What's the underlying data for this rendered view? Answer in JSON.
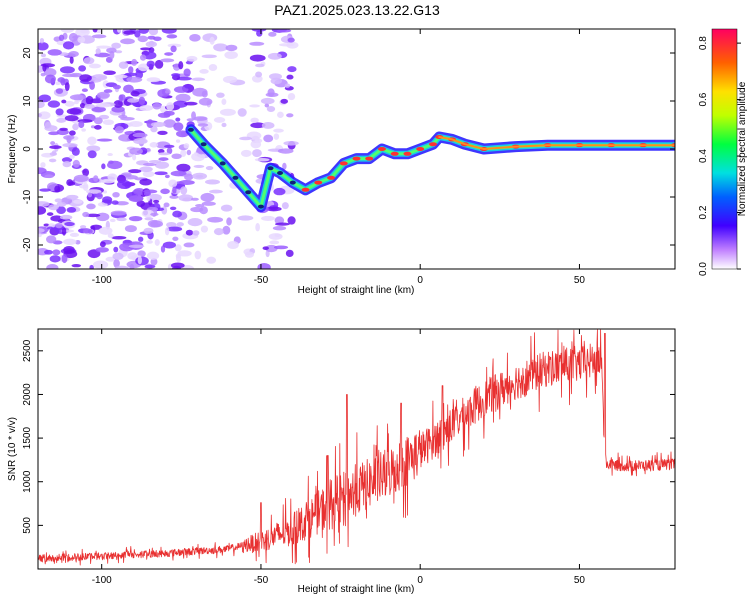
{
  "title": "PAZ1.2025.023.13.22.G13",
  "colors": {
    "snr_line": "#e83030",
    "noise": "#7a3cff",
    "signal_low": "#2040ff",
    "signal_mid": "#20e0c0",
    "signal_high": "#ff2020"
  },
  "chart_data": [
    {
      "type": "heatmap",
      "title": "",
      "xlabel": "Height of straight line (km)",
      "ylabel": "Frequency (Hz)",
      "xlim": [
        -120,
        80
      ],
      "ylim": [
        -25,
        25
      ],
      "x_ticks": [
        "-100",
        "-50",
        "0",
        "50"
      ],
      "y_ticks": [
        "20",
        "10",
        "0",
        "-10",
        "-20"
      ],
      "colorbar": {
        "label": "Normalized spectral amplitude",
        "range": [
          0,
          0.85
        ],
        "ticks": [
          "0.0",
          "0.2",
          "0.4",
          "0.6",
          "0.8"
        ]
      },
      "ridge": [
        {
          "x": -72,
          "y": 4
        },
        {
          "x": -68,
          "y": 1
        },
        {
          "x": -62,
          "y": -3
        },
        {
          "x": -58,
          "y": -6
        },
        {
          "x": -54,
          "y": -9
        },
        {
          "x": -50,
          "y": -12
        },
        {
          "x": -47,
          "y": -4
        },
        {
          "x": -44,
          "y": -5
        },
        {
          "x": -40,
          "y": -7
        },
        {
          "x": -36,
          "y": -8.5
        },
        {
          "x": -32,
          "y": -7
        },
        {
          "x": -28,
          "y": -6
        },
        {
          "x": -24,
          "y": -3
        },
        {
          "x": -20,
          "y": -2
        },
        {
          "x": -16,
          "y": -2
        },
        {
          "x": -12,
          "y": 0
        },
        {
          "x": -8,
          "y": -1
        },
        {
          "x": -4,
          "y": -1
        },
        {
          "x": 0,
          "y": 0
        },
        {
          "x": 4,
          "y": 1
        },
        {
          "x": 6,
          "y": 2.5
        },
        {
          "x": 10,
          "y": 2
        },
        {
          "x": 14,
          "y": 1
        },
        {
          "x": 20,
          "y": 0
        },
        {
          "x": 30,
          "y": 0.5
        },
        {
          "x": 40,
          "y": 0.8
        },
        {
          "x": 50,
          "y": 0.8
        },
        {
          "x": 60,
          "y": 0.8
        },
        {
          "x": 70,
          "y": 0.8
        },
        {
          "x": 80,
          "y": 0.8
        }
      ]
    },
    {
      "type": "line",
      "title": "",
      "xlabel": "Height of straight line (km)",
      "ylabel": "SNR (10 * v/v)",
      "xlim": [
        -120,
        80
      ],
      "ylim": [
        0,
        2750
      ],
      "x_ticks": [
        "-100",
        "-50",
        "0",
        "50"
      ],
      "y_ticks": [
        "500",
        "1000",
        "1500",
        "2000",
        "2500"
      ],
      "trend": [
        {
          "x": -120,
          "y": 120
        },
        {
          "x": -100,
          "y": 150
        },
        {
          "x": -80,
          "y": 180
        },
        {
          "x": -60,
          "y": 230
        },
        {
          "x": -50,
          "y": 320
        },
        {
          "x": -40,
          "y": 450
        },
        {
          "x": -30,
          "y": 700
        },
        {
          "x": -20,
          "y": 900
        },
        {
          "x": -10,
          "y": 1100
        },
        {
          "x": 0,
          "y": 1350
        },
        {
          "x": 10,
          "y": 1650
        },
        {
          "x": 20,
          "y": 1950
        },
        {
          "x": 30,
          "y": 2150
        },
        {
          "x": 40,
          "y": 2300
        },
        {
          "x": 50,
          "y": 2350
        },
        {
          "x": 57,
          "y": 2400
        },
        {
          "x": 58,
          "y": 1200
        },
        {
          "x": 65,
          "y": 1180
        },
        {
          "x": 80,
          "y": 1200
        }
      ],
      "spikes": [
        {
          "x": -50,
          "y": 760
        },
        {
          "x": -29,
          "y": 1300
        },
        {
          "x": -23,
          "y": 2000
        },
        {
          "x": -6,
          "y": 1900
        },
        {
          "x": 7,
          "y": 2100
        },
        {
          "x": 58,
          "y": 2700
        }
      ]
    }
  ]
}
